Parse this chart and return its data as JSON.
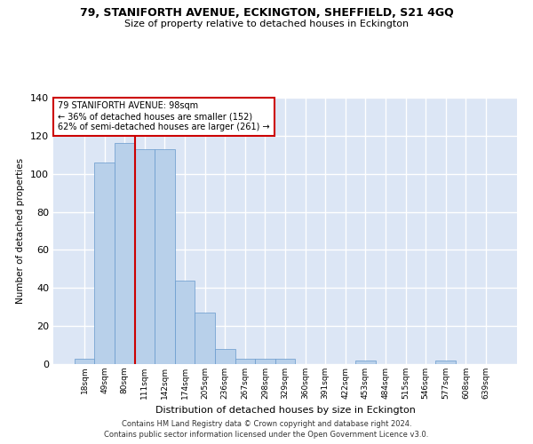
{
  "title": "79, STANIFORTH AVENUE, ECKINGTON, SHEFFIELD, S21 4GQ",
  "subtitle": "Size of property relative to detached houses in Eckington",
  "xlabel": "Distribution of detached houses by size in Eckington",
  "ylabel": "Number of detached properties",
  "bar_color": "#b8d0ea",
  "bar_edge_color": "#6699cc",
  "background_color": "#dce6f5",
  "grid_color": "#ffffff",
  "categories": [
    "18sqm",
    "49sqm",
    "80sqm",
    "111sqm",
    "142sqm",
    "174sqm",
    "205sqm",
    "236sqm",
    "267sqm",
    "298sqm",
    "329sqm",
    "360sqm",
    "391sqm",
    "422sqm",
    "453sqm",
    "484sqm",
    "515sqm",
    "546sqm",
    "577sqm",
    "608sqm",
    "639sqm"
  ],
  "values": [
    3,
    106,
    116,
    113,
    113,
    44,
    27,
    8,
    3,
    3,
    3,
    0,
    0,
    0,
    2,
    0,
    0,
    0,
    2,
    0,
    0
  ],
  "ylim": [
    0,
    140
  ],
  "yticks": [
    0,
    20,
    40,
    60,
    80,
    100,
    120,
    140
  ],
  "red_line_x": 2.5,
  "annotation_text": "79 STANIFORTH AVENUE: 98sqm\n← 36% of detached houses are smaller (152)\n62% of semi-detached houses are larger (261) →",
  "footer1": "Contains HM Land Registry data © Crown copyright and database right 2024.",
  "footer2": "Contains public sector information licensed under the Open Government Licence v3.0."
}
